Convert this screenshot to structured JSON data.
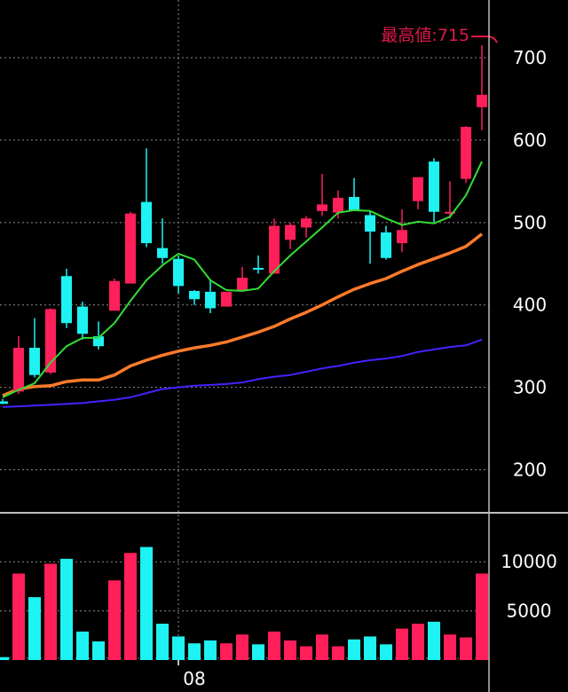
{
  "chart_data": [
    {
      "type": "candlestick",
      "title": "",
      "xlabel": "",
      "ylabel": "",
      "ylim": [
        150,
        770
      ],
      "y_ticks": [
        200,
        300,
        400,
        500,
        600,
        700
      ],
      "x_tick_labels": [
        {
          "index": 11,
          "label": "08"
        }
      ],
      "grid": true,
      "colors": {
        "up": "#ff1f5a",
        "down": "#1ef2f2",
        "ma_short": "#33dd33",
        "ma_mid": "#ff7a2a",
        "ma_long": "#4422ff",
        "annotation": "#e0194a"
      },
      "annotation": {
        "text": "最高値:715",
        "index": 31,
        "value": 715
      },
      "candles": [
        {
          "o": 283,
          "h": 286,
          "l": 280,
          "c": 280
        },
        {
          "o": 295,
          "h": 362,
          "l": 292,
          "c": 348
        },
        {
          "o": 348,
          "h": 384,
          "l": 312,
          "c": 315
        },
        {
          "o": 318,
          "h": 396,
          "l": 316,
          "c": 395
        },
        {
          "o": 435,
          "h": 444,
          "l": 372,
          "c": 378
        },
        {
          "o": 398,
          "h": 404,
          "l": 358,
          "c": 365
        },
        {
          "o": 362,
          "h": 380,
          "l": 346,
          "c": 350
        },
        {
          "o": 393,
          "h": 432,
          "l": 393,
          "c": 429
        },
        {
          "o": 426,
          "h": 513,
          "l": 426,
          "c": 511
        },
        {
          "o": 525,
          "h": 590,
          "l": 470,
          "c": 475
        },
        {
          "o": 469,
          "h": 505,
          "l": 450,
          "c": 457
        },
        {
          "o": 456,
          "h": 460,
          "l": 414,
          "c": 423
        },
        {
          "o": 417,
          "h": 418,
          "l": 400,
          "c": 407
        },
        {
          "o": 416,
          "h": 430,
          "l": 390,
          "c": 396
        },
        {
          "o": 398,
          "h": 415,
          "l": 398,
          "c": 416
        },
        {
          "o": 417,
          "h": 446,
          "l": 417,
          "c": 433
        },
        {
          "o": 445,
          "h": 460,
          "l": 438,
          "c": 444
        },
        {
          "o": 438,
          "h": 505,
          "l": 438,
          "c": 496
        },
        {
          "o": 479,
          "h": 500,
          "l": 468,
          "c": 497
        },
        {
          "o": 494,
          "h": 508,
          "l": 482,
          "c": 505
        },
        {
          "o": 514,
          "h": 559,
          "l": 508,
          "c": 522
        },
        {
          "o": 512,
          "h": 539,
          "l": 505,
          "c": 530
        },
        {
          "o": 531,
          "h": 554,
          "l": 514,
          "c": 515
        },
        {
          "o": 509,
          "h": 514,
          "l": 450,
          "c": 489
        },
        {
          "o": 488,
          "h": 496,
          "l": 455,
          "c": 457
        },
        {
          "o": 475,
          "h": 516,
          "l": 464,
          "c": 491
        },
        {
          "o": 526,
          "h": 555,
          "l": 516,
          "c": 555
        },
        {
          "o": 574,
          "h": 578,
          "l": 500,
          "c": 513
        },
        {
          "o": 513,
          "h": 550,
          "l": 505,
          "c": 513
        },
        {
          "o": 553,
          "h": 617,
          "l": 548,
          "c": 616
        },
        {
          "o": 640,
          "h": 715,
          "l": 612,
          "c": 655
        }
      ],
      "ma_short": [
        288,
        297,
        305,
        330,
        350,
        360,
        360,
        378,
        405,
        430,
        448,
        462,
        455,
        430,
        418,
        417,
        420,
        441,
        460,
        477,
        494,
        512,
        515,
        514,
        505,
        497,
        501,
        499,
        507,
        533,
        574
      ],
      "ma_mid": [
        290,
        298,
        301,
        302,
        307,
        309,
        309,
        315,
        326,
        333,
        339,
        344,
        348,
        351,
        355,
        361,
        367,
        374,
        383,
        391,
        400,
        410,
        419,
        426,
        432,
        441,
        449,
        456,
        463,
        471,
        486
      ],
      "ma_long": [
        276,
        277,
        278,
        279,
        280,
        281,
        283,
        285,
        288,
        293,
        298,
        300,
        302,
        303,
        304,
        306,
        310,
        313,
        315,
        319,
        323,
        326,
        330,
        333,
        335,
        338,
        343,
        346,
        349,
        351,
        358
      ]
    },
    {
      "type": "bar",
      "title": "",
      "ylim": [
        0,
        14800
      ],
      "y_ticks": [
        5000,
        10000
      ],
      "values": [
        300,
        8800,
        6400,
        9800,
        10300,
        2900,
        1900,
        8100,
        10900,
        11500,
        3700,
        2400,
        1700,
        2000,
        1700,
        2600,
        1600,
        2900,
        2000,
        1400,
        2600,
        1400,
        2100,
        2400,
        1600,
        3200,
        3700,
        3900,
        2600,
        2300,
        8800
      ],
      "colors": {
        "up": "#ff1f5a",
        "down": "#1ef2f2"
      }
    }
  ]
}
